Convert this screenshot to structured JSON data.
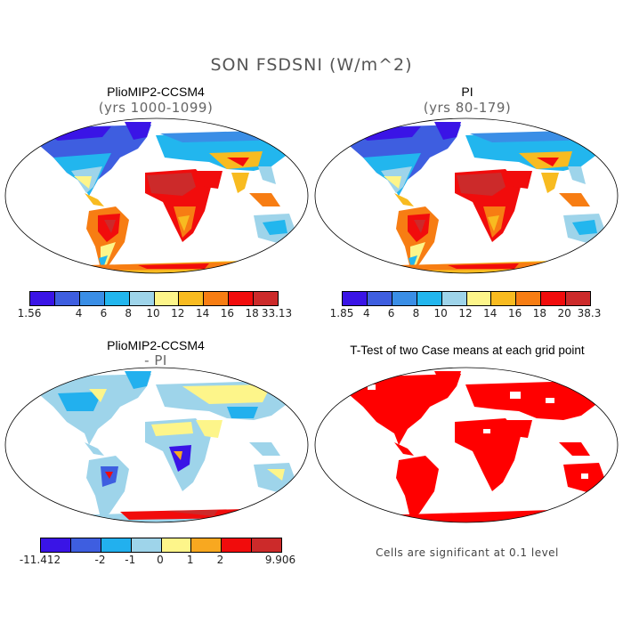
{
  "figure": {
    "title": "SON FSDSNI (W/m^2)"
  },
  "panels": [
    {
      "title": "PlioMIP2-CCSM4",
      "subtitle": "(yrs 1000-1099)",
      "colorbar": {
        "colors": [
          "#3a14e6",
          "#3e5ee0",
          "#3a8ee6",
          "#22b6ee",
          "#9ed4ea",
          "#fdf58a",
          "#f8bb20",
          "#f77d13",
          "#f10c0c",
          "#cc2a2a"
        ],
        "labels": [
          "1.56",
          "4",
          "6",
          "8",
          "10",
          "12",
          "14",
          "16",
          "18",
          "33.13"
        ]
      }
    },
    {
      "title": "PI",
      "subtitle": "(yrs 80-179)",
      "colorbar": {
        "colors": [
          "#3a14e6",
          "#3e5ee0",
          "#3a8ee6",
          "#22b6ee",
          "#9ed4ea",
          "#fdf58a",
          "#f8bb20",
          "#f77d13",
          "#f10c0c",
          "#cc2a2a"
        ],
        "labels": [
          "1.85",
          "4",
          "6",
          "8",
          "10",
          "12",
          "14",
          "16",
          "18",
          "20",
          "38.3"
        ]
      }
    },
    {
      "title": "PlioMIP2-CCSM4",
      "subtitle": "- PI",
      "colorbar": {
        "colors": [
          "#3a14e6",
          "#3e5ee0",
          "#22b0ee",
          "#9ed4ea",
          "#fdf58a",
          "#f8a820",
          "#f10c0c",
          "#cc2a2a"
        ],
        "labels": [
          "-11.412",
          "-2",
          "-1",
          "0",
          "1",
          "2",
          "9.906"
        ]
      }
    },
    {
      "title": "T-Test of two Case means at each grid point",
      "note": "Cells are significant at 0.1 level",
      "color": "#ff0000"
    }
  ]
}
